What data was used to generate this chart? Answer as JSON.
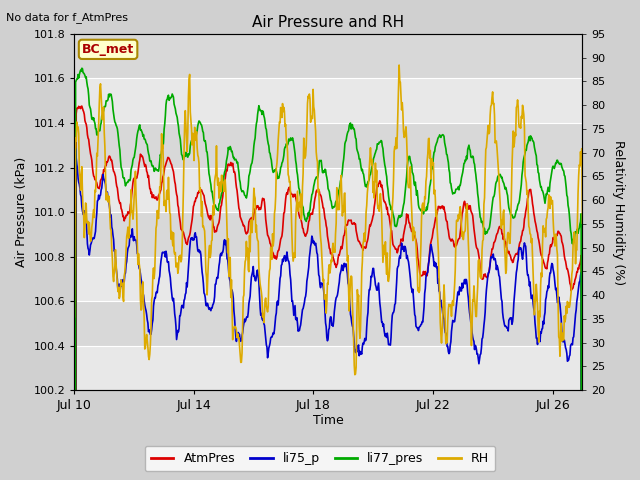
{
  "title": "Air Pressure and RH",
  "top_left_text": "No data for f_AtmPres",
  "box_label": "BC_met",
  "xlabel": "Time",
  "ylabel_left": "Air Pressure (kPa)",
  "ylabel_right": "Relativity Humidity (%)",
  "ylim_left": [
    100.2,
    101.8
  ],
  "ylim_right": [
    20,
    95
  ],
  "x_ticks_labels": [
    "Jul 10",
    "Jul 14",
    "Jul 18",
    "Jul 22",
    "Jul 26"
  ],
  "x_ticks_positions": [
    0,
    4,
    8,
    12,
    16
  ],
  "y_ticks_left": [
    100.2,
    100.4,
    100.6,
    100.8,
    101.0,
    101.2,
    101.4,
    101.6,
    101.8
  ],
  "y_ticks_right": [
    20,
    25,
    30,
    35,
    40,
    45,
    50,
    55,
    60,
    65,
    70,
    75,
    80,
    85,
    90,
    95
  ],
  "colors": {
    "AtmPres": "#dd0000",
    "li75_p": "#0000cc",
    "li77_pres": "#00aa00",
    "RH": "#ddaa00"
  },
  "band_colors": [
    "#e8e8e8",
    "#d8d8d8"
  ],
  "band_boundaries": [
    100.2,
    100.4,
    100.6,
    100.8,
    101.0,
    101.2,
    101.4,
    101.6,
    101.8
  ]
}
